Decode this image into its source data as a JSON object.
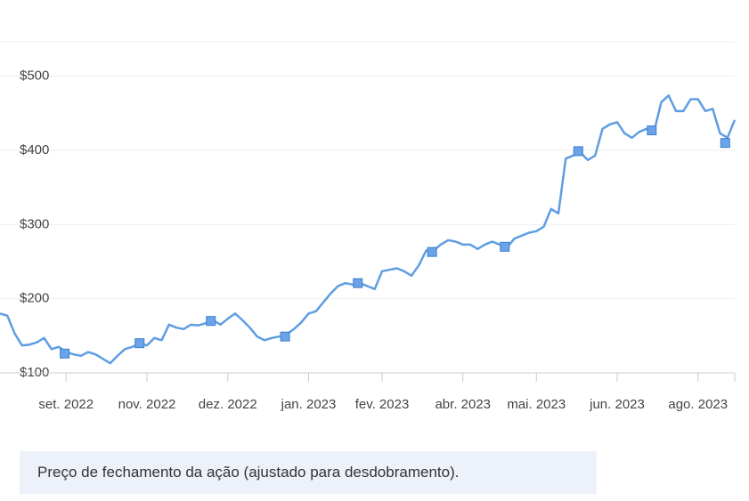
{
  "chart_data": {
    "type": "line",
    "x": [
      0,
      1,
      2,
      3,
      4,
      5,
      6,
      7,
      8,
      9,
      10,
      11,
      12,
      13,
      14,
      15,
      16,
      17,
      18,
      19,
      20,
      21,
      22,
      23,
      24,
      25,
      26,
      27,
      28,
      29,
      30,
      31,
      32,
      33,
      34,
      35,
      36,
      37,
      38,
      39,
      40,
      41,
      42,
      43,
      44,
      45,
      46,
      47,
      48,
      49,
      50,
      51,
      52,
      53,
      54,
      55,
      56,
      57,
      58,
      59,
      60,
      61,
      62,
      63,
      64,
      65,
      66,
      67,
      68,
      69,
      70,
      71,
      72,
      73,
      74,
      75,
      76,
      77,
      78,
      79,
      80,
      81,
      82,
      83,
      84,
      85,
      86,
      87,
      88,
      89,
      90,
      91,
      92,
      93,
      94,
      95,
      96,
      97,
      98,
      99,
      100
    ],
    "series": [
      {
        "color": "#5f9de3",
        "values": [
          180,
          177,
          153,
          137,
          138,
          141,
          147,
          132,
          135,
          128,
          125,
          123,
          128,
          125,
          119,
          113,
          123,
          132,
          135,
          140,
          137,
          147,
          144,
          165,
          161,
          159,
          165,
          164,
          167,
          171,
          165,
          173,
          180,
          171,
          161,
          149,
          144,
          147,
          149,
          152,
          159,
          168,
          180,
          183,
          195,
          207,
          217,
          221,
          219,
          221,
          217,
          213,
          237,
          239,
          241,
          237,
          231,
          245,
          265,
          265,
          273,
          279,
          277,
          273,
          273,
          267,
          273,
          277,
          273,
          269,
          281,
          285,
          289,
          291,
          297,
          321,
          315,
          389,
          393,
          397,
          387,
          393,
          429,
          435,
          438,
          423,
          417,
          425,
          429,
          425,
          465,
          474,
          453,
          453,
          469,
          469,
          453,
          456,
          423,
          417,
          441
        ]
      }
    ],
    "markers": {
      "color": "#6aa3e8",
      "x": [
        8.8,
        19,
        28.7,
        38.8,
        48.7,
        58.8,
        68.7,
        78.7,
        88.7,
        98.7
      ],
      "values": [
        126,
        140,
        170,
        149,
        221,
        263,
        270,
        399,
        427,
        410
      ]
    },
    "xlim": [
      0,
      100
    ],
    "xticks": [
      {
        "value": 9,
        "label": "set. 2022"
      },
      {
        "value": 20,
        "label": "nov. 2022"
      },
      {
        "value": 31,
        "label": "dez. 2022"
      },
      {
        "value": 42,
        "label": "jan. 2023"
      },
      {
        "value": 52,
        "label": "fev. 2023"
      },
      {
        "value": 63,
        "label": "abr. 2023"
      },
      {
        "value": 73,
        "label": "mai. 2023"
      },
      {
        "value": 84,
        "label": "jun. 2023"
      },
      {
        "value": 95,
        "label": "ago. 2023"
      }
    ],
    "ylim": [
      100,
      550
    ],
    "yticks": [
      {
        "value": 100,
        "label": "$100"
      },
      {
        "value": 200,
        "label": "$200"
      },
      {
        "value": 300,
        "label": "$300"
      },
      {
        "value": 400,
        "label": "$400"
      },
      {
        "value": 500,
        "label": "$500"
      }
    ],
    "grid": true
  },
  "caption": "Preço de fechamento da ação (ajustado para desdobramento)."
}
